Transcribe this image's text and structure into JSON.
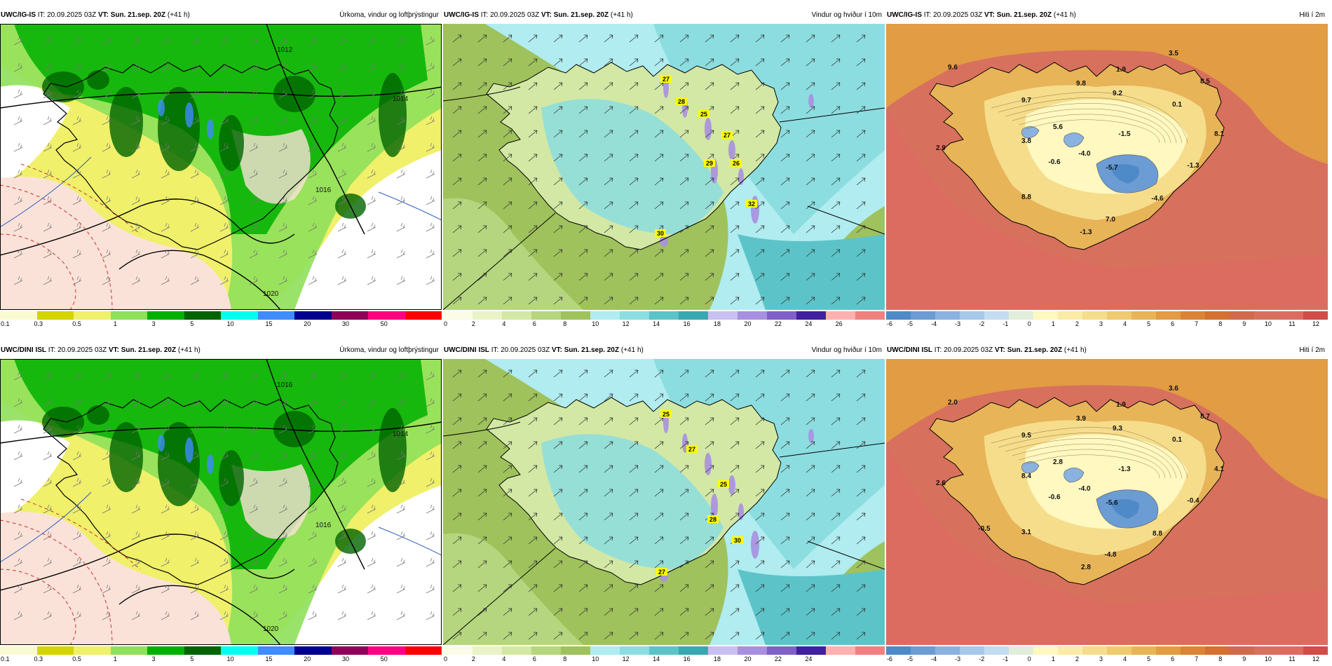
{
  "colors": {
    "precip_scale": [
      "#fafad2",
      "#d4d400",
      "#f0f06a",
      "#8fe05a",
      "#00b000",
      "#006400",
      "#00fff0",
      "#3f8cff",
      "#000090",
      "#90005a",
      "#ff0080",
      "#ff0000"
    ],
    "wind_scale": [
      "#fbfce8",
      "#eaf3c8",
      "#d2e8a4",
      "#b5d67e",
      "#9fc25c",
      "#b0ecf0",
      "#8cdde0",
      "#5cc4c8",
      "#38a8b0",
      "#c8c0f0",
      "#a890e0",
      "#8060c8",
      "#4020a0",
      "#ffb0b0",
      "#f08080"
    ],
    "temp_scale": [
      "#4f8ac8",
      "#6c9cd4",
      "#8ab2e0",
      "#a6c8ea",
      "#c4dcf0",
      "#e2eedc",
      "#fff8c0",
      "#faeca6",
      "#f5dd8c",
      "#efca70",
      "#e8b458",
      "#e29c44",
      "#da8436",
      "#d47030",
      "#d06a4c",
      "#d8705e",
      "#dc6c60",
      "#d24c48"
    ]
  },
  "panels": [
    {
      "model": "UWC/IG-IS",
      "init": "IT: 20.09.2025 03Z",
      "valid": "VT: Sun. 21.sep. 20Z",
      "lead": "(+41 h)",
      "title": "Úrkoma, vindur og loftþrýstingur",
      "kind": "precip",
      "ticks": [
        "0.1",
        "0.3",
        "0.5",
        "1",
        "3",
        "5",
        "10",
        "15",
        "20",
        "30",
        "50"
      ],
      "isobars": [
        "1012",
        "1014",
        "1016",
        "1020"
      ],
      "labels": []
    },
    {
      "model": "UWC/IG-IS",
      "init": "IT: 20.09.2025 03Z",
      "valid": "VT: Sun. 21.sep. 20Z",
      "lead": "(+41 h)",
      "title": "Vindur og hviður í 10m",
      "kind": "wind",
      "ticks": [
        "0",
        "2",
        "4",
        "6",
        "8",
        "10",
        "12",
        "14",
        "16",
        "18",
        "20",
        "22",
        "24",
        "26"
      ],
      "labels": [
        "27",
        "28",
        "25",
        "27",
        "29",
        "26",
        "32",
        "30"
      ]
    },
    {
      "model": "UWC/IG-IS",
      "init": "IT: 20.09.2025 03Z",
      "valid": "VT: Sun. 21.sep. 20Z",
      "lead": "(+41 h)",
      "title": "Hiti í 2m",
      "kind": "temp",
      "ticks": [
        "-6",
        "-5",
        "-4",
        "-3",
        "-2",
        "-1",
        "0",
        "1",
        "2",
        "3",
        "4",
        "5",
        "6",
        "7",
        "8",
        "9",
        "10",
        "11",
        "12"
      ],
      "labels": [
        "9.6",
        "3.5",
        "1.9",
        "8.5",
        "9.8",
        "9.2",
        "9.7",
        "0.1",
        "5.6",
        "3.8",
        "-1.5",
        "8.1",
        "2.9",
        "-0.6",
        "-4.0",
        "-5.7",
        "-1.3",
        "8.8",
        "-4.6",
        "7.0",
        "-1.3"
      ]
    },
    {
      "model": "UWC/DINI ISL",
      "init": "IT: 20.09.2025 03Z",
      "valid": "VT: Sun. 21.sep. 20Z",
      "lead": "(+41 h)",
      "title": "Úrkoma, vindur og loftþrýstingur",
      "kind": "precip",
      "ticks": [
        "0.1",
        "0.3",
        "0.5",
        "1",
        "3",
        "5",
        "10",
        "15",
        "20",
        "30",
        "50"
      ],
      "isobars": [
        "1016",
        "1014",
        "1016",
        "1020"
      ],
      "labels": []
    },
    {
      "model": "UWC/DINI ISL",
      "init": "IT: 20.09.2025 03Z",
      "valid": "VT: Sun. 21.sep. 20Z",
      "lead": "(+41 h)",
      "title": "Vindur og hviður í 10m",
      "kind": "wind",
      "ticks": [
        "0",
        "2",
        "4",
        "6",
        "8",
        "10",
        "12",
        "14",
        "16",
        "18",
        "20",
        "22",
        "24"
      ],
      "labels": [
        "25",
        "27",
        "25",
        "28",
        "30",
        "27"
      ]
    },
    {
      "model": "UWC/DINI ISL",
      "init": "IT: 20.09.2025 03Z",
      "valid": "VT: Sun. 21.sep. 20Z",
      "lead": "(+41 h)",
      "title": "Hiti í 2m",
      "kind": "temp",
      "ticks": [
        "-6",
        "-5",
        "-4",
        "-3",
        "-2",
        "-1",
        "0",
        "1",
        "2",
        "3",
        "4",
        "5",
        "6",
        "7",
        "8",
        "9",
        "10",
        "11",
        "12"
      ],
      "labels": [
        "2.0",
        "3.6",
        "1.9",
        "8.7",
        "3.9",
        "9.3",
        "9.5",
        "0.1",
        "2.8",
        "8.4",
        "-1.3",
        "4.1",
        "2.6",
        "-0.6",
        "-4.0",
        "-5.6",
        "-0.4",
        "3.1",
        "8.8",
        "-4.8",
        "2.8",
        "-0.5"
      ]
    }
  ]
}
